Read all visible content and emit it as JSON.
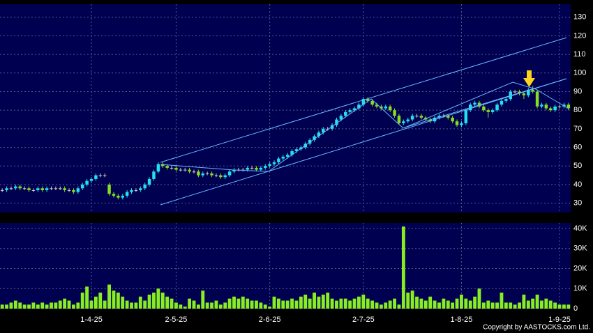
{
  "chart_data": {
    "type": "candlestick",
    "categories": [
      null,
      null,
      null,
      null,
      null,
      null,
      null,
      null,
      null,
      null,
      null,
      null,
      null,
      null,
      null,
      null,
      null,
      null,
      null,
      null,
      "1-4-25",
      null,
      null,
      null,
      null,
      null,
      null,
      null,
      null,
      null,
      null,
      null,
      null,
      null,
      null,
      null,
      null,
      null,
      null,
      "2-5-25",
      null,
      null,
      null,
      null,
      null,
      null,
      null,
      null,
      null,
      null,
      null,
      null,
      null,
      null,
      null,
      null,
      null,
      null,
      null,
      null,
      "2-6-25",
      null,
      null,
      null,
      null,
      null,
      null,
      null,
      null,
      null,
      null,
      null,
      null,
      null,
      null,
      null,
      null,
      null,
      null,
      null,
      null,
      "2-7-25",
      null,
      null,
      null,
      null,
      null,
      null,
      null,
      null,
      null,
      null,
      null,
      null,
      null,
      null,
      null,
      null,
      null,
      null,
      null,
      null,
      null,
      "1-8-25",
      null,
      null,
      null,
      null,
      null,
      null,
      null,
      null,
      null,
      null,
      null,
      null,
      null,
      null,
      null,
      null,
      null,
      null,
      null,
      null,
      null,
      "1-9-25",
      null,
      null
    ],
    "open": [
      37,
      37,
      38,
      38,
      39,
      38,
      38,
      37,
      37,
      38,
      37,
      38,
      38,
      38,
      38,
      37,
      37,
      36,
      38,
      40,
      42,
      43,
      45,
      45,
      40,
      35,
      34,
      33,
      34,
      36,
      37,
      37,
      38,
      40,
      43,
      47,
      51,
      50,
      49,
      49,
      48,
      48,
      48,
      47,
      47,
      45,
      46,
      46,
      45,
      45,
      44,
      45,
      47,
      48,
      48,
      48,
      49,
      49,
      48,
      49,
      50,
      51,
      52,
      54,
      55,
      56,
      58,
      59,
      60,
      62,
      64,
      66,
      68,
      70,
      70,
      72,
      75,
      77,
      79,
      80,
      81,
      83,
      86,
      85,
      83,
      82,
      81,
      82,
      80,
      77,
      73,
      74,
      75,
      77,
      77,
      76,
      75,
      74,
      76,
      77,
      77,
      76,
      74,
      72,
      73,
      80,
      83,
      84,
      82,
      80,
      79,
      80,
      83,
      85,
      86,
      90,
      90,
      89,
      88,
      91,
      90,
      82,
      83,
      81,
      80,
      82,
      82,
      83
    ],
    "high": [
      38,
      39,
      39,
      40,
      40,
      39,
      39,
      38,
      39,
      39,
      39,
      39,
      39,
      39,
      39,
      38,
      38,
      39,
      41,
      43,
      44,
      46,
      46,
      46,
      41,
      36,
      35,
      35,
      37,
      38,
      38,
      39,
      41,
      44,
      48,
      52,
      52,
      51,
      50,
      50,
      49,
      49,
      49,
      48,
      48,
      47,
      47,
      47,
      46,
      46,
      46,
      48,
      49,
      49,
      49,
      50,
      50,
      50,
      50,
      51,
      52,
      53,
      55,
      56,
      57,
      59,
      60,
      61,
      63,
      65,
      67,
      69,
      71,
      71,
      73,
      76,
      78,
      80,
      81,
      82,
      84,
      87,
      87,
      86,
      84,
      83,
      83,
      83,
      81,
      78,
      75,
      76,
      78,
      78,
      78,
      77,
      76,
      77,
      78,
      78,
      78,
      77,
      75,
      74,
      81,
      84,
      85,
      85,
      83,
      81,
      81,
      84,
      86,
      87,
      91,
      91,
      91,
      90,
      92,
      93,
      91,
      84,
      84,
      82,
      83,
      83,
      84,
      84
    ],
    "low": [
      36,
      36,
      37,
      37,
      37,
      37,
      36,
      36,
      36,
      36,
      36,
      37,
      37,
      37,
      36,
      36,
      35,
      35,
      37,
      39,
      41,
      42,
      44,
      44,
      34,
      33,
      32,
      32,
      33,
      35,
      36,
      36,
      37,
      39,
      42,
      46,
      49,
      48,
      48,
      47,
      47,
      47,
      46,
      46,
      44,
      44,
      45,
      44,
      44,
      43,
      43,
      44,
      46,
      47,
      47,
      47,
      48,
      47,
      47,
      48,
      49,
      50,
      51,
      53,
      54,
      55,
      57,
      58,
      59,
      61,
      63,
      65,
      67,
      69,
      69,
      71,
      74,
      76,
      78,
      79,
      80,
      82,
      84,
      82,
      81,
      80,
      80,
      79,
      76,
      72,
      72,
      73,
      74,
      76,
      75,
      74,
      73,
      73,
      75,
      76,
      75,
      73,
      71,
      71,
      72,
      79,
      82,
      81,
      79,
      76,
      78,
      79,
      82,
      84,
      85,
      89,
      88,
      86,
      87,
      89,
      81,
      81,
      80,
      79,
      79,
      81,
      81,
      80
    ],
    "close": [
      37,
      38,
      38,
      39,
      38,
      38,
      37,
      37,
      38,
      37,
      38,
      38,
      38,
      38,
      37,
      37,
      36,
      38,
      40,
      42,
      43,
      45,
      45,
      45,
      35,
      34,
      33,
      34,
      36,
      37,
      37,
      38,
      40,
      43,
      47,
      51,
      50,
      49,
      49,
      48,
      48,
      48,
      47,
      47,
      45,
      46,
      46,
      45,
      45,
      44,
      45,
      47,
      48,
      48,
      48,
      49,
      49,
      48,
      49,
      50,
      51,
      52,
      54,
      55,
      56,
      58,
      59,
      60,
      62,
      64,
      66,
      68,
      70,
      70,
      72,
      75,
      77,
      79,
      80,
      81,
      83,
      86,
      85,
      83,
      82,
      81,
      82,
      80,
      77,
      73,
      74,
      75,
      77,
      77,
      76,
      75,
      74,
      76,
      77,
      77,
      76,
      74,
      72,
      73,
      80,
      83,
      84,
      82,
      80,
      79,
      80,
      83,
      85,
      86,
      90,
      90,
      89,
      88,
      91,
      90,
      82,
      83,
      81,
      80,
      82,
      82,
      83,
      81
    ],
    "volume": [
      2000,
      2000,
      3000,
      4000,
      3000,
      2000,
      2000,
      3000,
      2000,
      3000,
      2000,
      3000,
      3000,
      4000,
      5000,
      4000,
      2000,
      3000,
      8000,
      11000,
      4000,
      6000,
      8000,
      4000,
      12000,
      9000,
      8000,
      6000,
      4000,
      3000,
      3000,
      6000,
      4000,
      7000,
      8000,
      10000,
      8000,
      6000,
      5000,
      3000,
      2000,
      1000,
      5000,
      4000,
      2000,
      9000,
      3000,
      3000,
      4000,
      2000,
      3000,
      5000,
      6000,
      5000,
      6000,
      5000,
      4000,
      4000,
      3000,
      2000,
      1000,
      6000,
      5000,
      4000,
      4000,
      5000,
      4000,
      6000,
      7000,
      5000,
      8000,
      6000,
      7000,
      8000,
      5000,
      4000,
      5000,
      5000,
      4000,
      5000,
      6000,
      7000,
      5000,
      4000,
      3000,
      2000,
      3000,
      4000,
      5000,
      2000,
      41000,
      8000,
      9000,
      6000,
      5000,
      4000,
      6000,
      4000,
      3000,
      5000,
      4000,
      3000,
      5000,
      7000,
      5000,
      4000,
      6000,
      10000,
      3000,
      4000,
      3000,
      3000,
      8000,
      3000,
      3000,
      2000,
      3000,
      7000,
      4000,
      5000,
      7000,
      4000,
      5000,
      4000,
      3000,
      2000,
      2000,
      2000
    ],
    "ylim": [
      25,
      137
    ],
    "yticks": [
      30,
      40,
      50,
      60,
      70,
      80,
      90,
      100,
      110,
      120,
      130
    ],
    "volume_ylim": [
      0,
      42800
    ],
    "volume_yticks": [
      0,
      {
        "value": 10000,
        "label": "10K"
      },
      {
        "value": 20000,
        "label": "20K"
      },
      {
        "value": 30000,
        "label": "30K"
      },
      {
        "value": 40000,
        "label": "40K"
      }
    ],
    "up_color": "#22e0f0",
    "down_color": "#88dd22",
    "flat_color": "#c8c8c8",
    "volume_color": "#88ee22",
    "grid": true
  },
  "copyright": "Copyright by AASTOCKS.com Ltd."
}
